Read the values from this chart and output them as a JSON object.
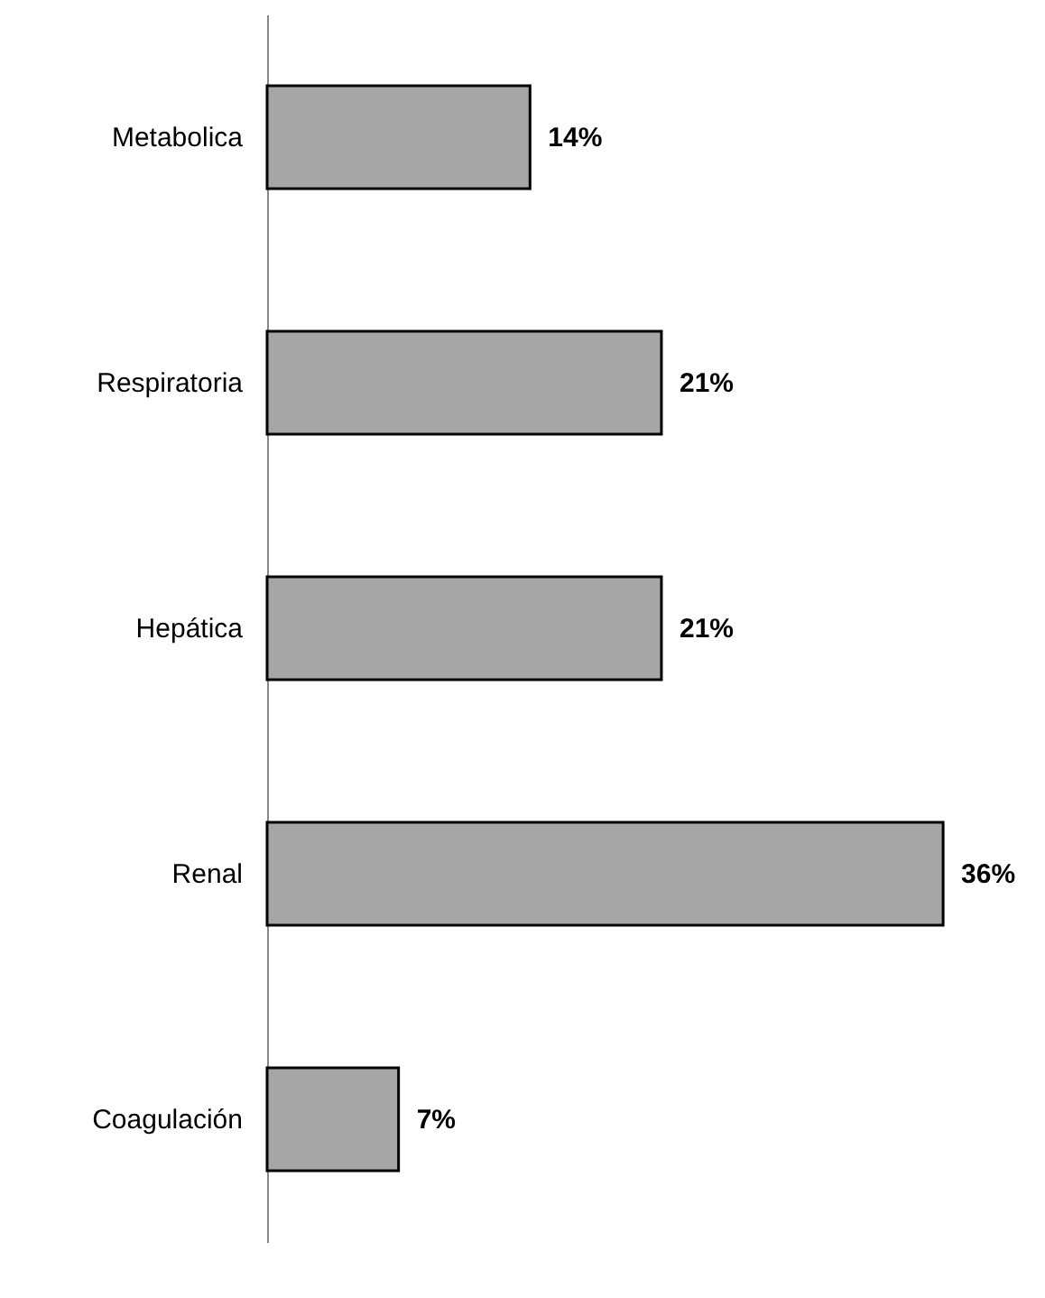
{
  "chart_data": {
    "type": "bar",
    "orientation": "horizontal",
    "categories": [
      "Metabolica",
      "Respiratoria",
      "Hepática",
      "Renal",
      "Coagulación"
    ],
    "values": [
      14,
      21,
      21,
      36,
      7
    ],
    "value_labels": [
      "14%",
      "21%",
      "21%",
      "36%",
      "7%"
    ],
    "color": "#a6a6a6",
    "tick_labels": "y"
  }
}
